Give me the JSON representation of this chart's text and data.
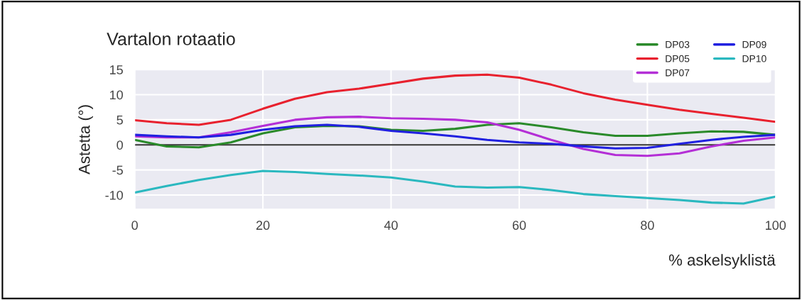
{
  "chart_data": {
    "type": "line",
    "title": "Vartalon rotaatio",
    "xlabel": "% askelsyklistä",
    "ylabel": "Astetta (°)",
    "x": [
      0,
      5,
      10,
      15,
      20,
      25,
      30,
      35,
      40,
      45,
      50,
      55,
      60,
      65,
      70,
      75,
      80,
      85,
      90,
      95,
      100
    ],
    "series": [
      {
        "name": "DP03",
        "color": "#2a8a2a",
        "values": [
          1.0,
          -0.3,
          -0.5,
          0.5,
          2.3,
          3.5,
          3.8,
          3.7,
          3.0,
          2.8,
          3.2,
          4.0,
          4.3,
          3.5,
          2.5,
          1.8,
          1.8,
          2.3,
          2.7,
          2.6,
          2.0
        ]
      },
      {
        "name": "DP05",
        "color": "#e8212e",
        "values": [
          4.9,
          4.3,
          4.0,
          5.0,
          7.2,
          9.2,
          10.5,
          11.2,
          12.2,
          13.2,
          13.8,
          14.0,
          13.4,
          12.0,
          10.3,
          9.0,
          8.0,
          7.0,
          6.2,
          5.4,
          4.6
        ]
      },
      {
        "name": "DP07",
        "color": "#b42fd6",
        "values": [
          1.7,
          1.5,
          1.5,
          2.5,
          3.8,
          5.0,
          5.5,
          5.6,
          5.3,
          5.2,
          5.0,
          4.5,
          3.0,
          1.0,
          -0.8,
          -2.0,
          -2.2,
          -1.7,
          -0.3,
          0.8,
          1.5
        ]
      },
      {
        "name": "DP09",
        "color": "#2020e0",
        "values": [
          2.0,
          1.7,
          1.5,
          2.0,
          3.0,
          3.7,
          4.0,
          3.6,
          2.8,
          2.3,
          1.7,
          1.0,
          0.5,
          0.2,
          -0.3,
          -0.7,
          -0.6,
          0.2,
          1.0,
          1.6,
          2.0
        ]
      },
      {
        "name": "DP10",
        "color": "#2ab8bf",
        "values": [
          -9.5,
          -8.2,
          -7.0,
          -6.0,
          -5.2,
          -5.4,
          -5.8,
          -6.1,
          -6.5,
          -7.3,
          -8.3,
          -8.5,
          -8.4,
          -9.0,
          -9.8,
          -10.2,
          -10.6,
          -11.0,
          -11.5,
          -11.7,
          -10.3
        ]
      }
    ],
    "ref_lines": [
      {
        "axis": "y",
        "value": 0,
        "color": "#333333"
      }
    ],
    "xlim": [
      0,
      100
    ],
    "xticks": [
      0,
      20,
      40,
      60,
      80,
      100
    ],
    "ylim": [
      -12.8,
      15
    ],
    "yticks": [
      -10,
      -5,
      0,
      5,
      10,
      15
    ],
    "grid": true,
    "legend": "top right",
    "line_style": "solid",
    "marker": "none"
  }
}
